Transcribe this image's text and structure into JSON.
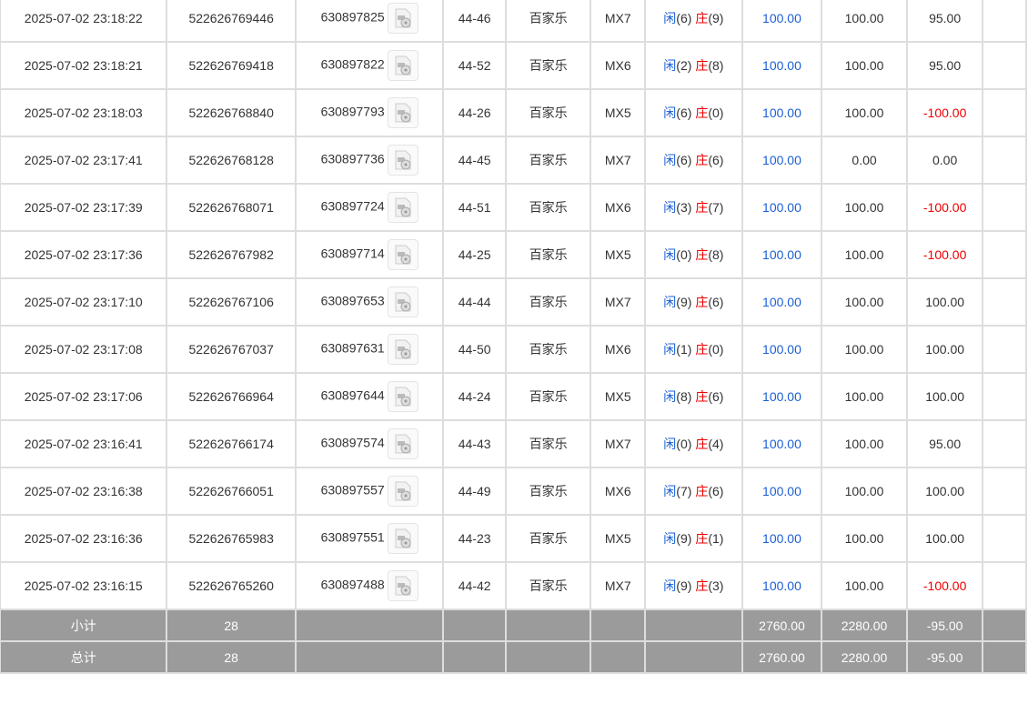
{
  "colors": {
    "player": "#1a5fd6",
    "banker": "#e00000",
    "bet": "#1a5fd6",
    "negative": "#e00000",
    "summary_bg": "#9b9b9b"
  },
  "rows": [
    [
      "2025-07-02 23:18:22",
      "522626769446",
      "630897825",
      "44-46",
      "百家乐",
      "MX7",
      "6",
      "9",
      "100.00",
      "100.00",
      "95.00"
    ],
    [
      "2025-07-02 23:18:21",
      "522626769418",
      "630897822",
      "44-52",
      "百家乐",
      "MX6",
      "2",
      "8",
      "100.00",
      "100.00",
      "95.00"
    ],
    [
      "2025-07-02 23:18:03",
      "522626768840",
      "630897793",
      "44-26",
      "百家乐",
      "MX5",
      "6",
      "0",
      "100.00",
      "100.00",
      "-100.00"
    ],
    [
      "2025-07-02 23:17:41",
      "522626768128",
      "630897736",
      "44-45",
      "百家乐",
      "MX7",
      "6",
      "6",
      "100.00",
      "0.00",
      "0.00"
    ],
    [
      "2025-07-02 23:17:39",
      "522626768071",
      "630897724",
      "44-51",
      "百家乐",
      "MX6",
      "3",
      "7",
      "100.00",
      "100.00",
      "-100.00"
    ],
    [
      "2025-07-02 23:17:36",
      "522626767982",
      "630897714",
      "44-25",
      "百家乐",
      "MX5",
      "0",
      "8",
      "100.00",
      "100.00",
      "-100.00"
    ],
    [
      "2025-07-02 23:17:10",
      "522626767106",
      "630897653",
      "44-44",
      "百家乐",
      "MX7",
      "9",
      "6",
      "100.00",
      "100.00",
      "100.00"
    ],
    [
      "2025-07-02 23:17:08",
      "522626767037",
      "630897631",
      "44-50",
      "百家乐",
      "MX6",
      "1",
      "0",
      "100.00",
      "100.00",
      "100.00"
    ],
    [
      "2025-07-02 23:17:06",
      "522626766964",
      "630897644",
      "44-24",
      "百家乐",
      "MX5",
      "8",
      "6",
      "100.00",
      "100.00",
      "100.00"
    ],
    [
      "2025-07-02 23:16:41",
      "522626766174",
      "630897574",
      "44-43",
      "百家乐",
      "MX7",
      "0",
      "4",
      "100.00",
      "100.00",
      "95.00"
    ],
    [
      "2025-07-02 23:16:38",
      "522626766051",
      "630897557",
      "44-49",
      "百家乐",
      "MX6",
      "7",
      "6",
      "100.00",
      "100.00",
      "100.00"
    ],
    [
      "2025-07-02 23:16:36",
      "522626765983",
      "630897551",
      "44-23",
      "百家乐",
      "MX5",
      "9",
      "1",
      "100.00",
      "100.00",
      "100.00"
    ],
    [
      "2025-07-02 23:16:15",
      "522626765260",
      "630897488",
      "44-42",
      "百家乐",
      "MX7",
      "9",
      "3",
      "100.00",
      "100.00",
      "-100.00"
    ]
  ],
  "labels": {
    "player": "闲",
    "banker": "庄"
  },
  "summary": [
    {
      "label": "小计",
      "count": "28",
      "bet": "2760.00",
      "valid": "2280.00",
      "win": "-95.00"
    },
    {
      "label": "总计",
      "count": "28",
      "bet": "2760.00",
      "valid": "2280.00",
      "win": "-95.00"
    }
  ]
}
